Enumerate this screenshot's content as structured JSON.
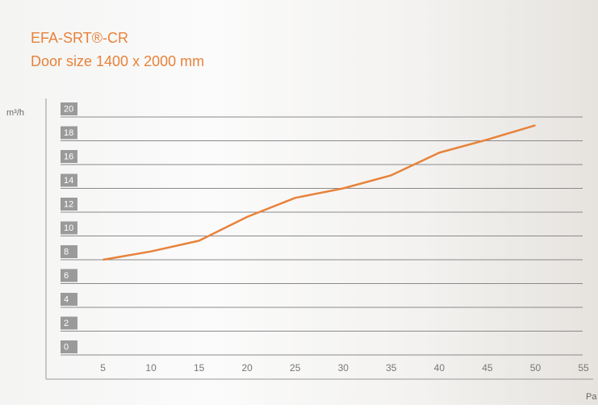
{
  "chart_data": {
    "type": "line",
    "title": "EFA-SRT®-CR",
    "subtitle": "Door size 1400 x 2000 mm",
    "y_label": "m³/h",
    "x_label": "Pa",
    "x": [
      5,
      10,
      15,
      20,
      25,
      30,
      35,
      40,
      45,
      50
    ],
    "series": [
      {
        "color": "#e8823a",
        "values": [
          8.0,
          8.7,
          9.6,
          11.6,
          13.2,
          14.0,
          15.1,
          17.0,
          18.1,
          19.3
        ]
      }
    ],
    "xlim": [
      0,
      55
    ],
    "xticks": [
      5,
      10,
      15,
      20,
      25,
      30,
      35,
      40,
      45,
      50,
      55
    ],
    "ylim": [
      0,
      20
    ],
    "yticks": [
      0,
      2,
      4,
      6,
      8,
      10,
      12,
      14,
      16,
      18,
      20
    ],
    "grid": true
  }
}
